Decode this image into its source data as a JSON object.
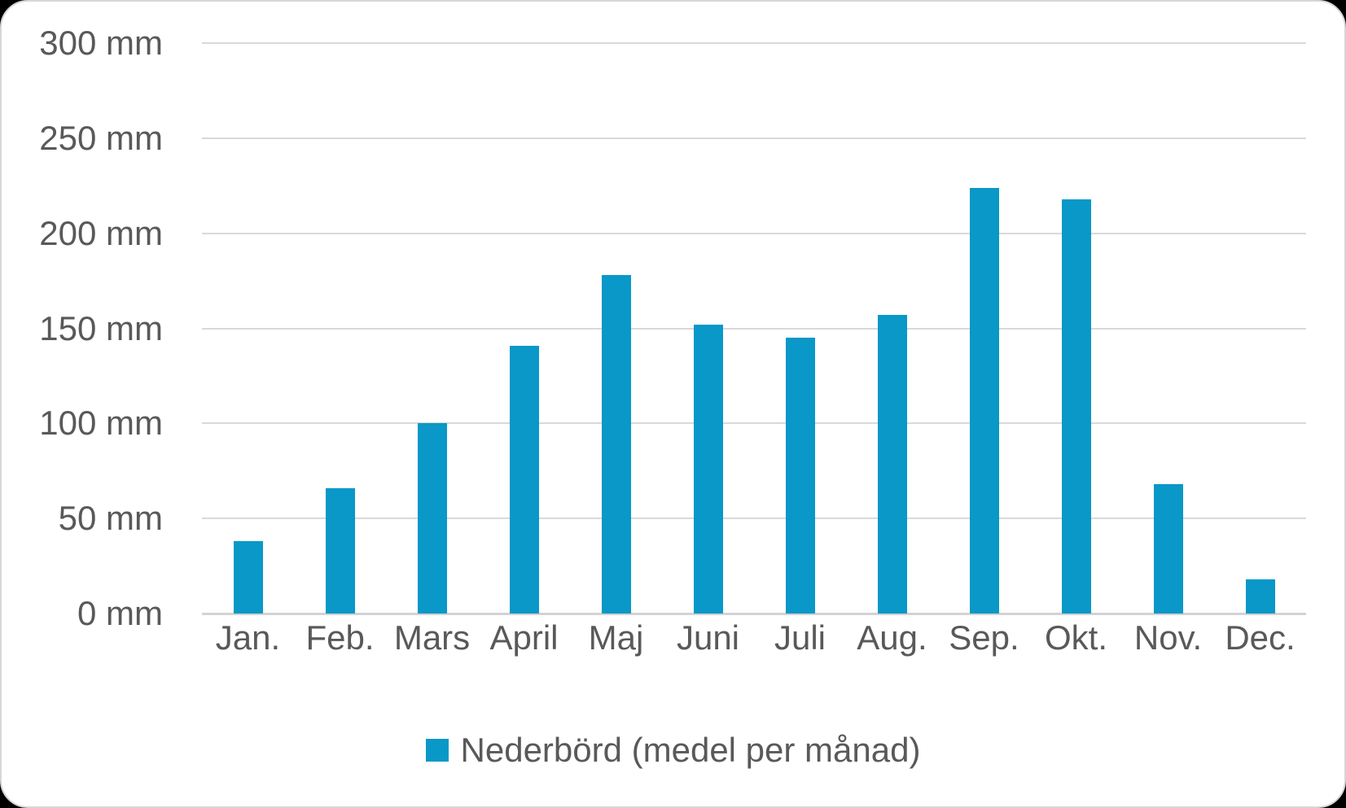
{
  "chart_data": {
    "type": "bar",
    "categories": [
      "Jan.",
      "Feb.",
      "Mars",
      "April",
      "Maj",
      "Juni",
      "Juli",
      "Aug.",
      "Sep.",
      "Okt.",
      "Nov.",
      "Dec."
    ],
    "values": [
      38,
      66,
      100,
      141,
      178,
      152,
      145,
      157,
      224,
      218,
      68,
      18
    ],
    "series": [
      {
        "name": "Nederbörd (medel per månad)",
        "values": [
          38,
          66,
          100,
          141,
          178,
          152,
          145,
          157,
          224,
          218,
          68,
          18
        ]
      }
    ],
    "title": "",
    "xlabel": "",
    "ylabel": "",
    "unit": "mm",
    "ylim": [
      0,
      300
    ],
    "ytick_step": 50,
    "ytick_labels": [
      "300 mm",
      "250 mm",
      "200 mm",
      "150 mm",
      "100 mm",
      "50 mm",
      "0 mm"
    ],
    "grid": true,
    "legend_position": "bottom",
    "legend_label": "Nederbörd (medel per månad)"
  },
  "colors": {
    "bar": "#0998c7",
    "gridline": "#d9d9d9",
    "text": "#595959",
    "card_background": "#ffffff",
    "card_border": "#d6d6d6"
  }
}
